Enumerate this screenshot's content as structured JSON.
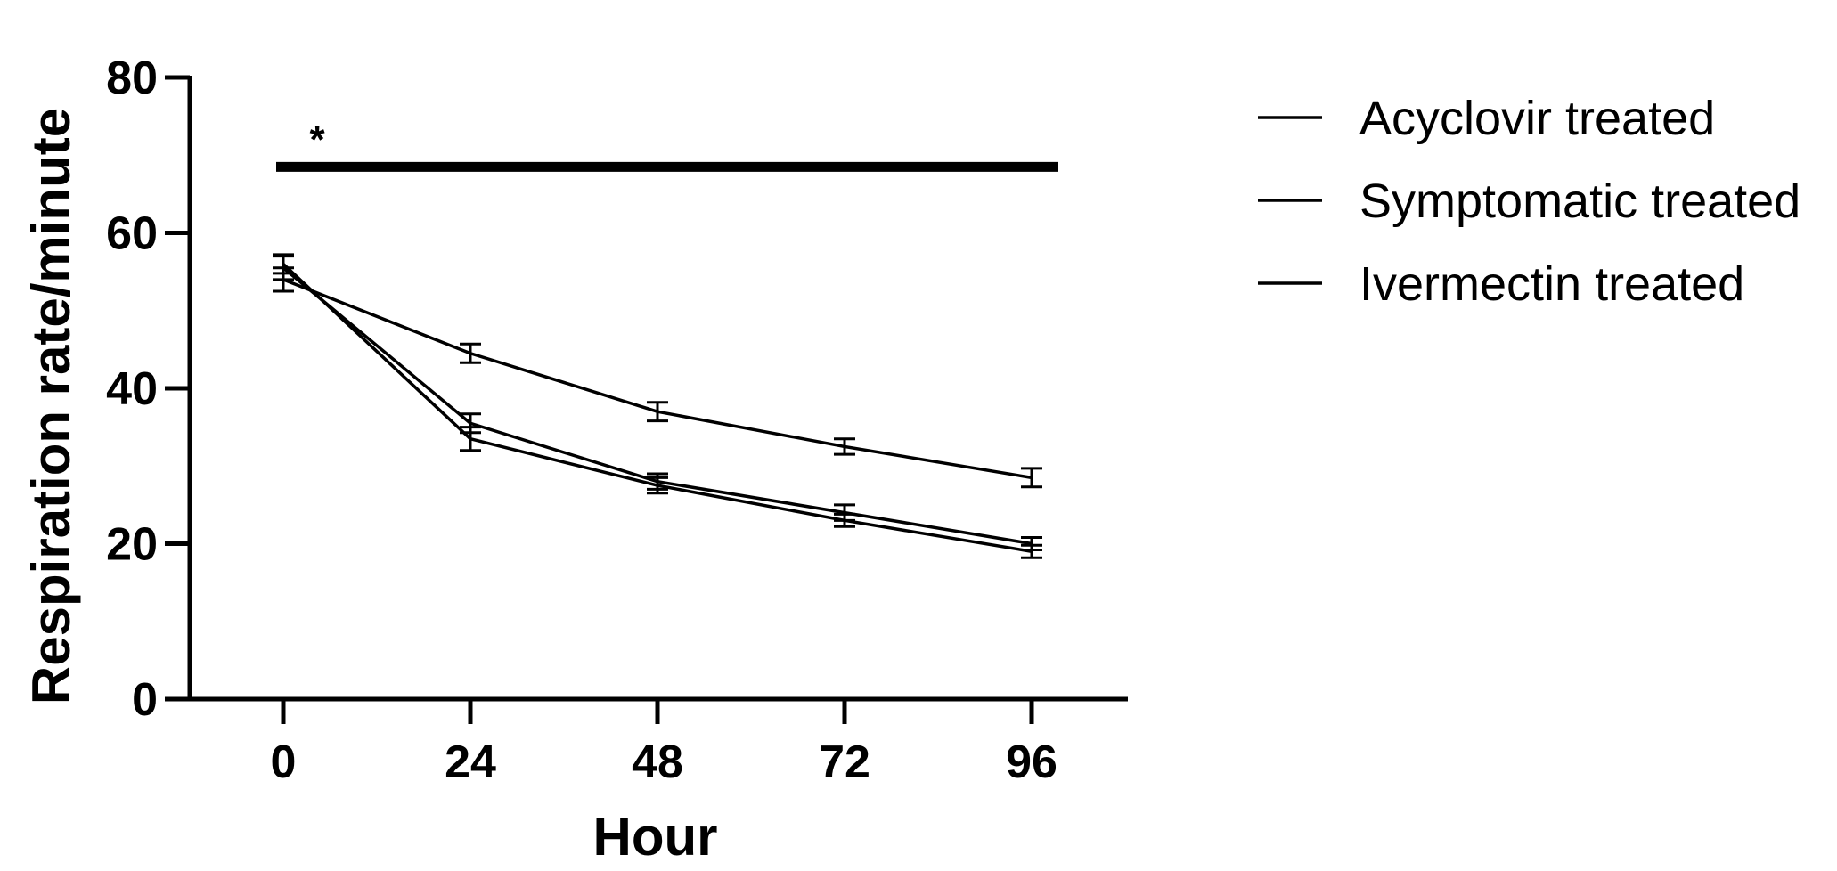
{
  "chart_data": {
    "type": "line",
    "xlabel": "Hour",
    "ylabel": "Respiration rate/minute",
    "x": [
      0,
      24,
      48,
      72,
      96
    ],
    "xticks": [
      "0",
      "24",
      "48",
      "72",
      "96"
    ],
    "yticks": [
      "0",
      "20",
      "40",
      "60",
      "80"
    ],
    "ylim": [
      0,
      80
    ],
    "grid": false,
    "legend_position": "right",
    "series": [
      {
        "name": "Acyclovir treated",
        "values": [
          55.5,
          35.5,
          28.0,
          24.0,
          20.0
        ],
        "errors": [
          1.5,
          1.2,
          1.0,
          1.0,
          0.8
        ]
      },
      {
        "name": "Symptomatic treated",
        "values": [
          54.0,
          44.5,
          37.0,
          32.5,
          28.5
        ],
        "errors": [
          1.5,
          1.2,
          1.2,
          1.0,
          1.2
        ]
      },
      {
        "name": "Ivermectin treated",
        "values": [
          56.0,
          33.5,
          27.5,
          23.0,
          19.0
        ],
        "errors": [
          1.2,
          1.5,
          1.0,
          0.8,
          0.8
        ]
      }
    ],
    "annotations": [
      {
        "text": "*",
        "x_range": [
          0,
          96
        ],
        "y": 68.5,
        "type": "significance-bar"
      }
    ],
    "colors": {
      "line": "#000000",
      "background": "#ffffff"
    }
  }
}
